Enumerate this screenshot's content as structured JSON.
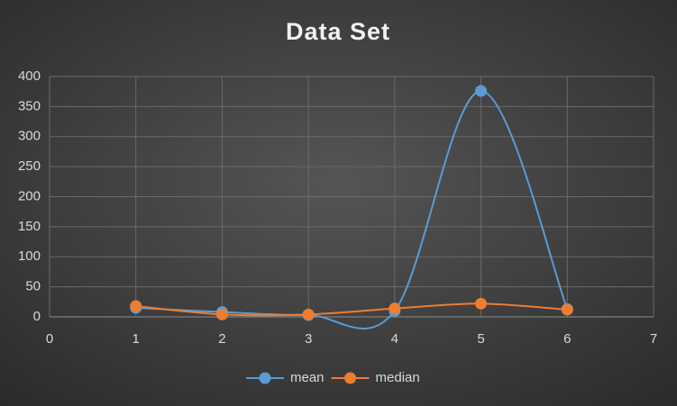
{
  "chart_data": {
    "type": "scatter-smooth",
    "title": "Data Set",
    "x": [
      1,
      2,
      3,
      4,
      5,
      6
    ],
    "series": [
      {
        "name": "mean",
        "color": "#5b9bd5",
        "values": [
          15,
          8,
          3,
          10,
          376,
          13
        ]
      },
      {
        "name": "median",
        "color": "#ed7d31",
        "values": [
          18,
          4,
          4,
          14,
          22,
          12
        ]
      }
    ],
    "xlim": [
      0,
      7
    ],
    "xticks": [
      0,
      1,
      2,
      3,
      4,
      5,
      6,
      7
    ],
    "ylim": [
      0,
      400
    ],
    "yticks": [
      0,
      50,
      100,
      150,
      200,
      250,
      300,
      350,
      400
    ],
    "grid": true,
    "legend": "bottom"
  }
}
